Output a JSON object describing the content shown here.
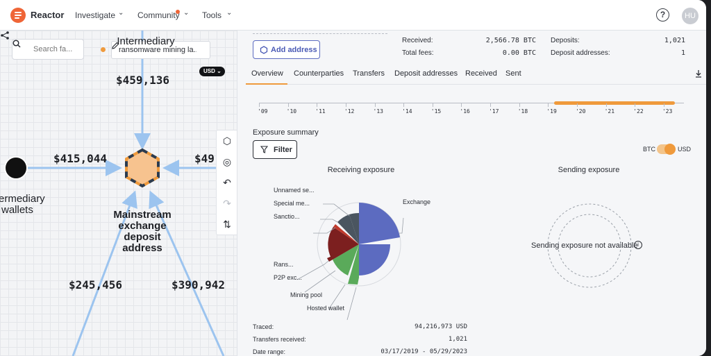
{
  "app": {
    "name": "Reactor"
  },
  "nav": {
    "items": [
      {
        "label": "Investigate"
      },
      {
        "label": "Community"
      },
      {
        "label": "Tools"
      }
    ],
    "avatar_initials": "HU",
    "help_glyph": "?"
  },
  "graph": {
    "search_placeholder": "Search fa...",
    "case_name": "ransomware mining la...",
    "currency_pill": "USD",
    "amounts": {
      "top": "$459,136",
      "left": "$415,044",
      "right_partial": "$49",
      "bottom_left": "$245,456",
      "bottom_right": "$390,942"
    },
    "labels": {
      "top_partial": "Intermediary",
      "left_line1": "ermediary",
      "left_line2": "wallets",
      "main": "Mainstream exchange deposit address"
    },
    "icons": [
      "share-icon",
      "pencil-icon",
      "search-icon",
      "hexagon-icon",
      "target-icon",
      "undo-icon",
      "redo-icon",
      "sort-icon"
    ]
  },
  "panel": {
    "add_address_label": "Add address",
    "stats": {
      "received_label": "Received:",
      "received_value": "2,566.78 BTC",
      "total_fees_label": "Total fees:",
      "total_fees_value": "0.00 BTC",
      "deposits_label": "Deposits:",
      "deposits_value": "1,021",
      "deposit_addresses_label": "Deposit addresses:",
      "deposit_addresses_value": "1"
    },
    "tabs": [
      {
        "label": "Overview",
        "active": true
      },
      {
        "label": "Counterparties"
      },
      {
        "label": "Transfers"
      },
      {
        "label": "Deposit addresses"
      },
      {
        "label": "Received"
      },
      {
        "label": "Sent"
      }
    ],
    "timeline": {
      "years": [
        "'09",
        "'10",
        "'11",
        "'12",
        "'13",
        "'14",
        "'15",
        "'16",
        "'17",
        "'18",
        "'19",
        "'20",
        "'21",
        "'22",
        "'23"
      ],
      "active_range_start_year": 2019.2,
      "active_range_end_year": 2023.4
    },
    "exposure_title": "Exposure summary",
    "filter_label": "Filter",
    "toggle": {
      "left": "BTC",
      "right": "USD",
      "selected": "USD"
    },
    "receiving_title": "Receiving exposure",
    "sending_title": "Sending exposure",
    "sending_na": "Sending exposure not available",
    "pie_labels": [
      "Unnamed se...",
      "Special me...",
      "Sanctio...",
      "Exchange",
      "Rans...",
      "P2P exc...",
      "Mining pool",
      "Hosted wallet"
    ],
    "summary": [
      {
        "label": "Traced:",
        "value": "94,216,973 USD"
      },
      {
        "label": "Transfers received:",
        "value": "1,021"
      },
      {
        "label": "Date range:",
        "value": "03/17/2019 - 05/29/2023"
      }
    ]
  },
  "colors": {
    "accent": "#ef9a3c",
    "brand": "#ef6537",
    "exchange": "#5c6bc0",
    "mining_pool": "#5aaa5a",
    "ransomware": "#7c1f1f",
    "unnamed": "#4a5560",
    "sanctions": "#c0392b",
    "edge": "#9cc4ef"
  }
}
